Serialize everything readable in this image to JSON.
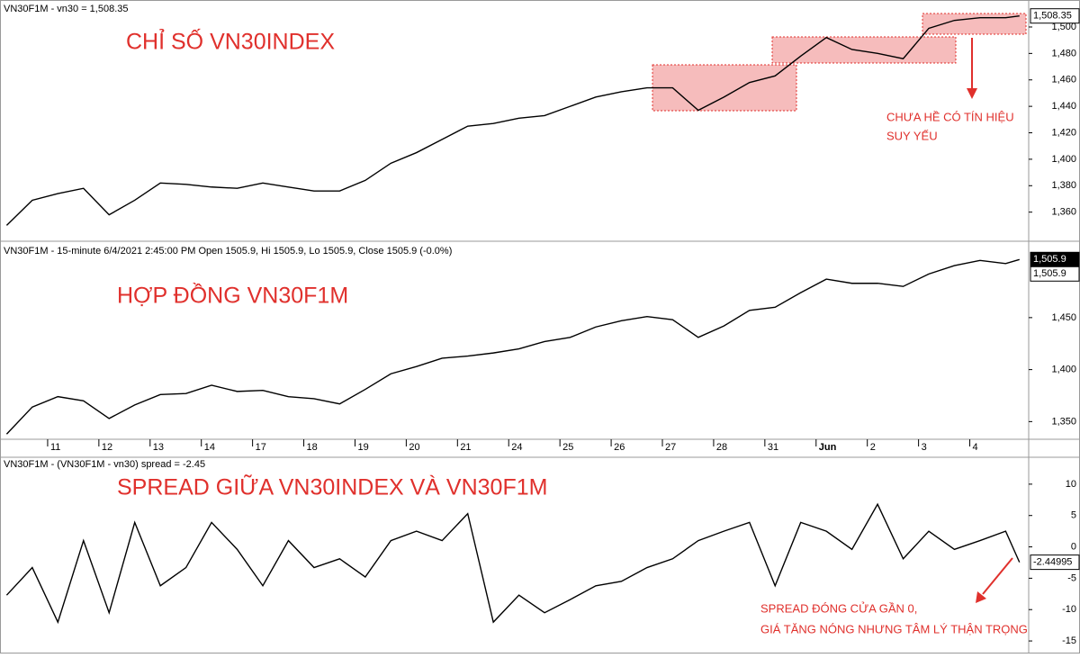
{
  "chart_data": [
    {
      "type": "line",
      "header": "VN30F1M - vn30 = 1,508.35",
      "title": "CHỈ SỐ VN30INDEX",
      "annotations": [
        "CHƯA HỀ CÓ TÍN HIỆU",
        "SUY YẾU"
      ],
      "x": [
        0.2,
        0.7,
        1.2,
        1.7,
        2.2,
        2.7,
        3.2,
        3.7,
        4.2,
        4.7,
        5.2,
        5.7,
        6.2,
        6.7,
        7.2,
        7.7,
        8.2,
        8.7,
        9.2,
        9.7,
        10.2,
        10.7,
        11.2,
        11.7,
        12.2,
        12.7,
        13.2,
        13.7,
        14.2,
        14.7,
        15.2,
        15.7,
        16.2,
        16.7,
        17.2,
        17.7,
        18.2,
        18.7,
        19.2,
        19.7,
        19.97
      ],
      "series": [
        {
          "color": "#000000",
          "values": [
            1350,
            1369,
            1374,
            1378,
            1358,
            1369,
            1382,
            1381,
            1379,
            1378,
            1382,
            1379,
            1376,
            1376,
            1384,
            1397,
            1405,
            1415,
            1425,
            1427,
            1431,
            1433,
            1440,
            1447,
            1451,
            1454,
            1454,
            1437,
            1447,
            1458,
            1463,
            1478,
            1492,
            1483,
            1480,
            1476,
            1499,
            1505,
            1507,
            1507,
            1508.35
          ]
        }
      ],
      "last_label": "1,508.35",
      "xlim": [
        0.07,
        20.15
      ],
      "ylim": [
        1338,
        1517
      ],
      "yticks": [
        {
          "value": 1360,
          "label": "1,360"
        },
        {
          "value": 1380,
          "label": "1,380"
        },
        {
          "value": 1400,
          "label": "1,400"
        },
        {
          "value": 1420,
          "label": "1,420"
        },
        {
          "value": 1440,
          "label": "1,440"
        },
        {
          "value": 1460,
          "label": "1,460"
        },
        {
          "value": 1480,
          "label": "1,480"
        },
        {
          "value": 1500,
          "label": "1,500"
        }
      ]
    },
    {
      "type": "line",
      "header": "VN30F1M - 15-minute 6/4/2021 2:45:00 PM Open 1505.9, Hi 1505.9, Lo 1505.9, Close 1505.9 (-0.0%)",
      "title": "HỢP ĐỒNG VN30F1M",
      "x": [
        0.2,
        0.7,
        1.2,
        1.7,
        2.2,
        2.7,
        3.2,
        3.7,
        4.2,
        4.7,
        5.2,
        5.7,
        6.2,
        6.7,
        7.2,
        7.7,
        8.2,
        8.7,
        9.2,
        9.7,
        10.2,
        10.7,
        11.2,
        11.7,
        12.2,
        12.7,
        13.2,
        13.7,
        14.2,
        14.7,
        15.2,
        15.7,
        16.2,
        16.7,
        17.2,
        17.7,
        18.2,
        18.7,
        19.2,
        19.7,
        19.97
      ],
      "series": [
        {
          "color": "#000000",
          "values": [
            1338,
            1364,
            1374,
            1370,
            1353,
            1366,
            1376,
            1377,
            1385,
            1379,
            1380,
            1374,
            1372,
            1367,
            1381,
            1396,
            1403,
            1411,
            1413,
            1416,
            1420,
            1427,
            1431,
            1441,
            1447,
            1451,
            1448,
            1431,
            1442,
            1457,
            1460,
            1474,
            1487,
            1483,
            1483,
            1480,
            1492,
            1500,
            1505,
            1502,
            1505.9
          ]
        }
      ],
      "last_label": "1,505.9",
      "xlim": [
        0.07,
        20.15
      ],
      "ylim": [
        1333,
        1520
      ],
      "yticks": [
        {
          "value": 1350,
          "label": "1,350"
        },
        {
          "value": 1400,
          "label": "1,400"
        },
        {
          "value": 1450,
          "label": "1,450"
        }
      ],
      "xticks": [
        {
          "value": 1,
          "label": "11"
        },
        {
          "value": 2,
          "label": "12"
        },
        {
          "value": 3,
          "label": "13"
        },
        {
          "value": 4,
          "label": "14"
        },
        {
          "value": 5,
          "label": "17"
        },
        {
          "value": 6,
          "label": "18"
        },
        {
          "value": 7,
          "label": "19"
        },
        {
          "value": 8,
          "label": "20"
        },
        {
          "value": 9,
          "label": "21"
        },
        {
          "value": 10,
          "label": "24"
        },
        {
          "value": 11,
          "label": "25"
        },
        {
          "value": 12,
          "label": "26"
        },
        {
          "value": 13,
          "label": "27"
        },
        {
          "value": 14,
          "label": "28"
        },
        {
          "value": 15,
          "label": "31"
        },
        {
          "value": 16,
          "label": "Jun"
        },
        {
          "value": 17,
          "label": "2"
        },
        {
          "value": 18,
          "label": "3"
        },
        {
          "value": 19,
          "label": "4"
        }
      ]
    },
    {
      "type": "line",
      "header": "VN30F1M - (VN30F1M - vn30) spread = -2.45",
      "title": "SPREAD GIỮA VN30INDEX VÀ VN30F1M",
      "annotations": [
        "SPREAD ĐÓNG CỬA GẦN 0,",
        "GIÁ TĂNG NÓNG NHƯNG TÂM LÝ THẬN TRỌNG"
      ],
      "x": [
        0.2,
        0.7,
        1.2,
        1.7,
        2.2,
        2.7,
        3.2,
        3.7,
        4.2,
        4.7,
        5.2,
        5.7,
        6.2,
        6.7,
        7.2,
        7.7,
        8.2,
        8.7,
        9.2,
        9.7,
        10.2,
        10.7,
        11.2,
        11.7,
        12.2,
        12.7,
        13.2,
        13.7,
        14.2,
        14.7,
        15.2,
        15.7,
        16.2,
        16.7,
        17.2,
        17.7,
        18.2,
        18.7,
        19.2,
        19.7,
        19.97
      ],
      "series": [
        {
          "color": "#000000",
          "values": [
            -7.7,
            -3.3,
            -12,
            1,
            -10.5,
            3.9,
            -6.2,
            -3.3,
            3.9,
            -0.4,
            -6.2,
            1,
            -3.3,
            -1.9,
            -4.8,
            1,
            2.5,
            1,
            5.3,
            -12,
            -7.7,
            -10.5,
            -8.4,
            -6.2,
            -5.5,
            -3.3,
            -1.9,
            1,
            2.5,
            3.9,
            -6.2,
            3.9,
            2.5,
            -0.4,
            6.8,
            -1.9,
            2.5,
            -0.4,
            1,
            2.5,
            -2.44995
          ]
        }
      ],
      "last_label": "-2.44995",
      "xlim": [
        0.07,
        20.15
      ],
      "ylim": [
        -17,
        14
      ],
      "yticks": [
        10,
        5,
        0,
        -5,
        -10,
        -15
      ]
    }
  ]
}
